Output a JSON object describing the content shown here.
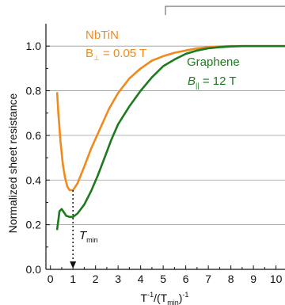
{
  "chart_data": {
    "type": "line",
    "xlabel": {
      "base": "T",
      "sup1": "-1",
      "mid": "/(T",
      "sub": "min",
      "end": ")",
      "sup2": "-1"
    },
    "ylabel": "Normalized sheet resistance",
    "xlim": [
      -0.2,
      10.4
    ],
    "ylim": [
      0.0,
      1.1
    ],
    "xticks": [
      "0",
      "1",
      "2",
      "3",
      "4",
      "5",
      "6",
      "7",
      "8",
      "9",
      "10"
    ],
    "yticks": [
      "0.0",
      "0.2",
      "0.4",
      "0.6",
      "0.8",
      "1.0"
    ],
    "grid": "horizontal",
    "series": [
      {
        "name": "NbTiN",
        "field_label": "B",
        "field_sub": "⊥",
        "field_value": " = 0.05 T",
        "color": "#f08a1c",
        "x": [
          0.3,
          0.35,
          0.45,
          0.55,
          0.65,
          0.75,
          0.85,
          1.0,
          1.2,
          1.5,
          1.8,
          2.2,
          2.6,
          3.0,
          3.5,
          4.0,
          4.5,
          5.0,
          5.5,
          6.0,
          6.5,
          7.0,
          7.5,
          8.0,
          8.5,
          9.0,
          9.5,
          10.0,
          10.4
        ],
        "y": [
          0.79,
          0.7,
          0.57,
          0.47,
          0.41,
          0.37,
          0.355,
          0.355,
          0.385,
          0.46,
          0.54,
          0.63,
          0.72,
          0.79,
          0.855,
          0.9,
          0.935,
          0.955,
          0.97,
          0.98,
          0.99,
          0.995,
          0.998,
          1.0,
          1.0,
          1.0,
          1.0,
          1.0,
          1.0
        ]
      },
      {
        "name": "Graphene",
        "field_label": "B",
        "field_sub": "||",
        "field_value": " = 12 T",
        "color": "#1e7a1e",
        "x": [
          0.3,
          0.35,
          0.4,
          0.5,
          0.6,
          0.7,
          0.85,
          1.0,
          1.2,
          1.5,
          1.8,
          2.1,
          2.4,
          2.7,
          3.0,
          3.5,
          4.0,
          4.5,
          5.0,
          5.5,
          6.0,
          6.5,
          7.0,
          7.5,
          8.0,
          8.5,
          9.0,
          9.5,
          10.0,
          10.4
        ],
        "y": [
          0.18,
          0.22,
          0.26,
          0.27,
          0.255,
          0.24,
          0.235,
          0.235,
          0.25,
          0.29,
          0.35,
          0.42,
          0.5,
          0.58,
          0.65,
          0.73,
          0.8,
          0.86,
          0.91,
          0.94,
          0.965,
          0.98,
          0.99,
          0.995,
          0.998,
          1.0,
          1.0,
          1.0,
          1.0,
          1.0
        ]
      }
    ],
    "annotation": {
      "label_main": "T",
      "label_sub": "min",
      "x": 1.0,
      "y_from": 0.355,
      "y_to": 0.0
    }
  }
}
